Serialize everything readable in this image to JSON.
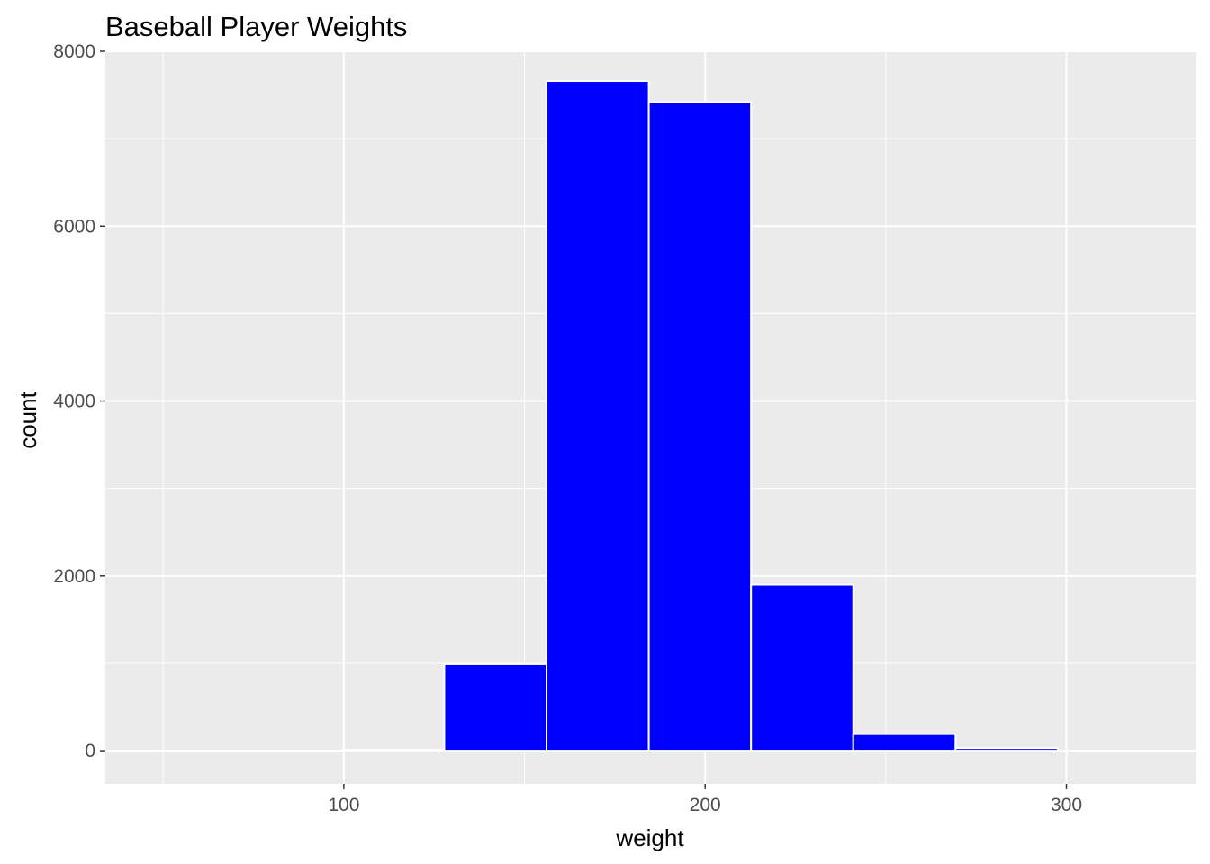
{
  "chart_data": {
    "type": "histogram",
    "title": "Baseball Player Weights",
    "xlabel": "weight",
    "ylabel": "count",
    "xlim": [
      34,
      336
    ],
    "ylim": [
      -380,
      8000
    ],
    "x_ticks": [
      100,
      200,
      300
    ],
    "y_ticks": [
      0,
      2000,
      4000,
      6000,
      8000
    ],
    "grid": true,
    "legend": "none",
    "colors": {
      "bar_fill": "#0000ff",
      "bar_outline": "#ffffff",
      "panel": "#ebebeb",
      "grid": "#ffffff"
    },
    "bins": [
      {
        "start": 99.5,
        "end": 127.8,
        "count": 10
      },
      {
        "start": 127.8,
        "end": 156.1,
        "count": 990
      },
      {
        "start": 156.1,
        "end": 184.4,
        "count": 7660
      },
      {
        "start": 184.4,
        "end": 212.7,
        "count": 7420
      },
      {
        "start": 212.7,
        "end": 241.0,
        "count": 1900
      },
      {
        "start": 241.0,
        "end": 269.3,
        "count": 190
      },
      {
        "start": 269.3,
        "end": 297.6,
        "count": 30
      }
    ]
  }
}
